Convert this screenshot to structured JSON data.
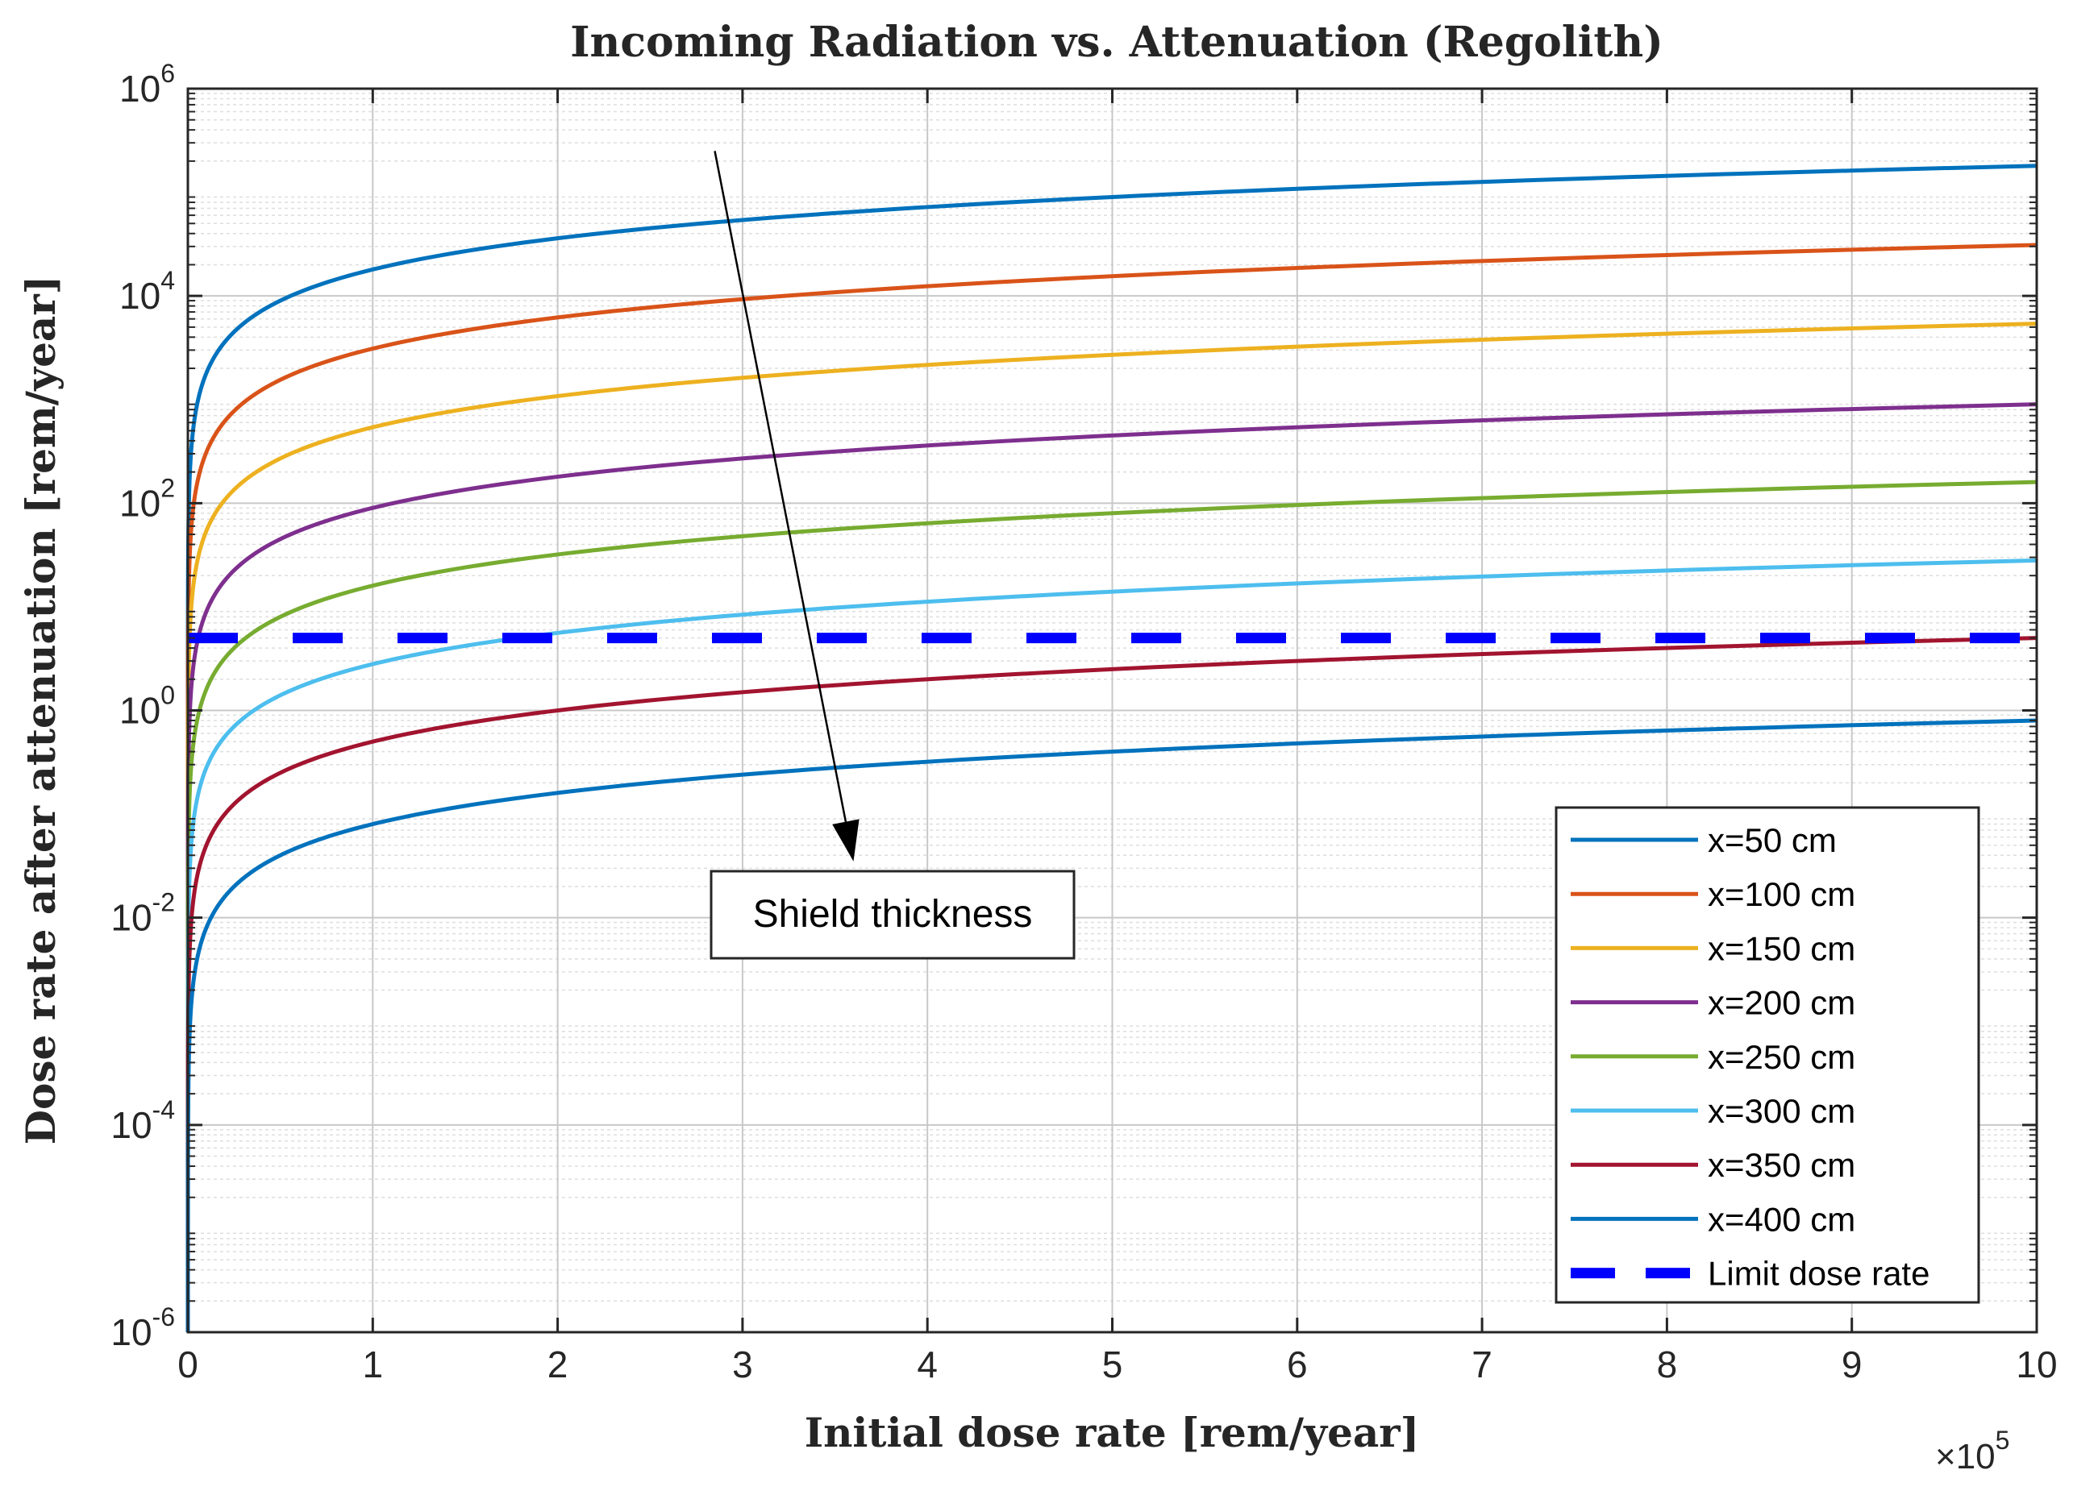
{
  "chart_data": {
    "type": "line",
    "title": "Incoming Radiation vs. Attenuation (Regolith)",
    "xlabel": "Initial dose rate [rem/year]",
    "ylabel": "Dose rate after attenuation [rem/year]",
    "x_exponent_label": "×10",
    "x_exponent_power": "5",
    "x_scale": "linear",
    "y_scale": "log",
    "xlim": [
      0,
      10
    ],
    "ylim_exponent": [
      -6,
      6
    ],
    "grid": true,
    "legend_position": "bottom-right",
    "x_ticks": [
      {
        "value": 0,
        "label": "0"
      },
      {
        "value": 1,
        "label": "1"
      },
      {
        "value": 2,
        "label": "2"
      },
      {
        "value": 3,
        "label": "3"
      },
      {
        "value": 4,
        "label": "4"
      },
      {
        "value": 5,
        "label": "5"
      },
      {
        "value": 6,
        "label": "6"
      },
      {
        "value": 7,
        "label": "7"
      },
      {
        "value": 8,
        "label": "8"
      },
      {
        "value": 9,
        "label": "9"
      },
      {
        "value": 10,
        "label": "10"
      }
    ],
    "y_ticks": [
      {
        "exp": -6,
        "base": "10",
        "power": "-6"
      },
      {
        "exp": -4,
        "base": "10",
        "power": "-4"
      },
      {
        "exp": -2,
        "base": "10",
        "power": "-2"
      },
      {
        "exp": 0,
        "base": "10",
        "power": "0"
      },
      {
        "exp": 2,
        "base": "10",
        "power": "2"
      },
      {
        "exp": 4,
        "base": "10",
        "power": "4"
      },
      {
        "exp": 6,
        "base": "10",
        "power": "6"
      }
    ],
    "series": [
      {
        "name": "x=50 cm",
        "color": "#0072BD",
        "value_at_xmax": 180000,
        "style": "solid"
      },
      {
        "name": "x=100 cm",
        "color": "#D95319",
        "value_at_xmax": 31000,
        "style": "solid"
      },
      {
        "name": "x=150 cm",
        "color": "#EDB120",
        "value_at_xmax": 5400,
        "style": "solid"
      },
      {
        "name": "x=200 cm",
        "color": "#7E2F8E",
        "value_at_xmax": 900,
        "style": "solid"
      },
      {
        "name": "x=250 cm",
        "color": "#77AC30",
        "value_at_xmax": 160,
        "style": "solid"
      },
      {
        "name": "x=300 cm",
        "color": "#4DBEEE",
        "value_at_xmax": 28,
        "style": "solid"
      },
      {
        "name": "x=350 cm",
        "color": "#A2142F",
        "value_at_xmax": 5,
        "style": "solid"
      },
      {
        "name": "x=400 cm",
        "color": "#0072BD",
        "value_at_xmax": 0.8,
        "style": "solid"
      },
      {
        "name": "Limit dose rate",
        "color": "#0000FF",
        "constant": 5,
        "style": "dashed"
      }
    ],
    "annotation": {
      "text": "Shield thickness",
      "arrow_from": {
        "x": 2.85,
        "y": 250000
      },
      "arrow_to": {
        "x": 3.6,
        "y": 0.035
      }
    }
  }
}
